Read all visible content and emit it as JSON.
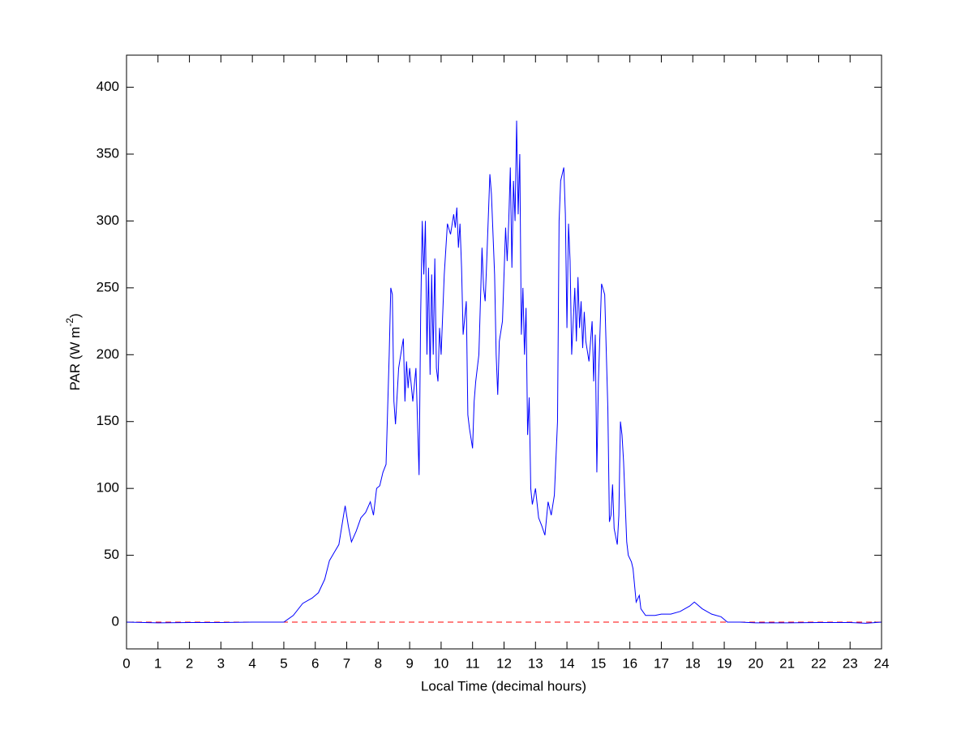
{
  "chart_data": {
    "type": "line",
    "xlabel": "Local Time (decimal hours)",
    "ylabel": [
      "PAR (W m",
      "-2",
      ")"
    ],
    "xlim": [
      0,
      24
    ],
    "ylim": [
      -20,
      424
    ],
    "xticks": [
      0,
      1,
      2,
      3,
      4,
      5,
      6,
      7,
      8,
      9,
      10,
      11,
      12,
      13,
      14,
      15,
      16,
      17,
      18,
      19,
      20,
      21,
      22,
      23,
      24
    ],
    "yticks": [
      0,
      50,
      100,
      150,
      200,
      250,
      300,
      350,
      400
    ],
    "grid": false,
    "reference_line": {
      "y": 0,
      "color": "#ff0000",
      "dash": true
    },
    "x": [
      0,
      1,
      2,
      3,
      4,
      5,
      5.3,
      5.6,
      5.9,
      6.1,
      6.3,
      6.45,
      6.6,
      6.75,
      6.9,
      6.95,
      7.05,
      7.15,
      7.3,
      7.45,
      7.6,
      7.75,
      7.85,
      7.95,
      8.05,
      8.15,
      8.25,
      8.35,
      8.4,
      8.45,
      8.5,
      8.55,
      8.65,
      8.75,
      8.8,
      8.85,
      8.9,
      8.95,
      9.0,
      9.1,
      9.2,
      9.3,
      9.35,
      9.4,
      9.45,
      9.5,
      9.55,
      9.6,
      9.65,
      9.7,
      9.75,
      9.8,
      9.85,
      9.9,
      9.95,
      10.0,
      10.1,
      10.2,
      10.3,
      10.4,
      10.45,
      10.5,
      10.55,
      10.6,
      10.65,
      10.7,
      10.8,
      10.85,
      10.9,
      11.0,
      11.05,
      11.1,
      11.2,
      11.3,
      11.35,
      11.4,
      11.45,
      11.55,
      11.6,
      11.7,
      11.75,
      11.8,
      11.85,
      11.95,
      12.05,
      12.1,
      12.15,
      12.2,
      12.25,
      12.3,
      12.35,
      12.4,
      12.45,
      12.5,
      12.55,
      12.6,
      12.65,
      12.7,
      12.75,
      12.8,
      12.85,
      12.9,
      13.0,
      13.1,
      13.2,
      13.3,
      13.4,
      13.5,
      13.6,
      13.7,
      13.75,
      13.8,
      13.9,
      13.95,
      14.0,
      14.05,
      14.1,
      14.15,
      14.25,
      14.3,
      14.35,
      14.4,
      14.45,
      14.5,
      14.55,
      14.6,
      14.7,
      14.8,
      14.85,
      14.9,
      14.95,
      15.0,
      15.1,
      15.2,
      15.3,
      15.35,
      15.4,
      15.45,
      15.5,
      15.6,
      15.65,
      15.7,
      15.75,
      15.8,
      15.9,
      15.95,
      16.05,
      16.1,
      16.2,
      16.3,
      16.35,
      16.5,
      16.8,
      17.0,
      17.3,
      17.6,
      17.9,
      18.05,
      18.3,
      18.6,
      18.9,
      19.1,
      19.5,
      20,
      21,
      22,
      23,
      23.5,
      24
    ],
    "series": [
      {
        "color": "#0000ff",
        "values": [
          0,
          -0.5,
          -0.3,
          -0.3,
          0,
          0,
          5,
          14,
          18,
          22,
          32,
          46,
          52,
          58,
          80,
          87,
          72,
          60,
          68,
          78,
          82,
          90,
          80,
          100,
          102,
          112,
          118,
          200,
          250,
          245,
          165,
          148,
          190,
          205,
          212,
          165,
          195,
          175,
          190,
          165,
          190,
          110,
          230,
          300,
          260,
          300,
          200,
          265,
          185,
          260,
          200,
          272,
          190,
          180,
          220,
          200,
          260,
          298,
          290,
          305,
          295,
          310,
          280,
          298,
          265,
          215,
          240,
          155,
          145,
          130,
          165,
          180,
          200,
          280,
          250,
          240,
          270,
          335,
          320,
          260,
          200,
          170,
          210,
          225,
          295,
          270,
          300,
          340,
          265,
          330,
          300,
          375,
          305,
          350,
          215,
          250,
          200,
          235,
          140,
          168,
          100,
          88,
          100,
          78,
          72,
          65,
          90,
          80,
          95,
          150,
          300,
          330,
          340,
          305,
          220,
          298,
          270,
          200,
          250,
          210,
          258,
          220,
          240,
          205,
          232,
          210,
          195,
          225,
          180,
          215,
          112,
          180,
          253,
          245,
          160,
          75,
          80,
          103,
          70,
          58,
          80,
          150,
          140,
          120,
          60,
          50,
          45,
          40,
          15,
          20,
          10,
          5,
          5,
          6,
          6,
          8,
          12,
          15,
          10,
          6,
          4,
          0,
          0,
          -0.5,
          -0.5,
          -0.3,
          -0.3,
          -0.8,
          0
        ]
      }
    ]
  }
}
